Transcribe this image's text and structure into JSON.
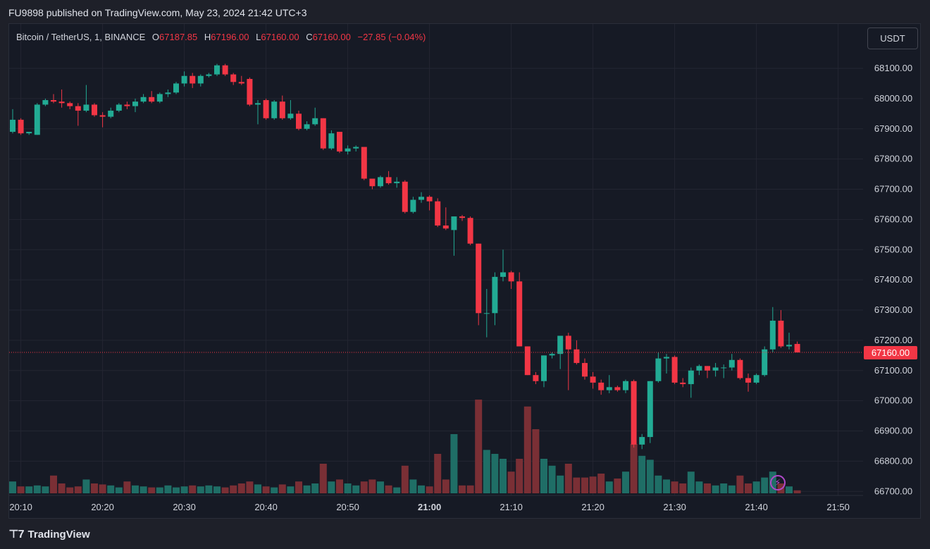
{
  "header": {
    "published_by": "FU9898 published on TradingView.com, May 23, 2024 21:42 UTC+3"
  },
  "legend": {
    "symbol": "Bitcoin / TetherUS, 1, BINANCE",
    "open_label": "O",
    "open": "67187.85",
    "high_label": "H",
    "high": "67196.00",
    "low_label": "L",
    "low": "67160.00",
    "close_label": "C",
    "close": "67160.00",
    "change": "−27.85 (−0.04%)"
  },
  "toolbar": {
    "currency": "USDT"
  },
  "footer": {
    "brand": "TradingView",
    "logo_icon": "tradingview-logo-icon"
  },
  "colors": {
    "up": "#22ab94",
    "down": "#f23645",
    "volume_up": "#1f6e66",
    "volume_down": "#7a2f35",
    "grid": "#232632",
    "last_price": "#f23645"
  },
  "chart_data": {
    "type": "candlestick",
    "x_start_time": "20:09",
    "interval_minutes": 1,
    "ylim": [
      66640,
      68170
    ],
    "last_price_label": "67160.00",
    "y_ticks": [
      {
        "value": 68100,
        "label": "68100.00"
      },
      {
        "value": 68000,
        "label": "68000.00"
      },
      {
        "value": 67900,
        "label": "67900.00"
      },
      {
        "value": 67800,
        "label": "67800.00"
      },
      {
        "value": 67700,
        "label": "67700.00"
      },
      {
        "value": 67600,
        "label": "67600.00"
      },
      {
        "value": 67500,
        "label": "67500.00"
      },
      {
        "value": 67400,
        "label": "67400.00"
      },
      {
        "value": 67300,
        "label": "67300.00"
      },
      {
        "value": 67200,
        "label": "67200.00"
      },
      {
        "value": 67100,
        "label": "67100.00"
      },
      {
        "value": 67000,
        "label": "67000.00"
      },
      {
        "value": 66900,
        "label": "66900.00"
      },
      {
        "value": 66800,
        "label": "66800.00"
      },
      {
        "value": 66700,
        "label": "66700.00"
      }
    ],
    "x_ticks": [
      {
        "index": 1,
        "label": "20:10",
        "bold": false
      },
      {
        "index": 11,
        "label": "20:20",
        "bold": false
      },
      {
        "index": 21,
        "label": "20:30",
        "bold": false
      },
      {
        "index": 31,
        "label": "20:40",
        "bold": false
      },
      {
        "index": 41,
        "label": "20:50",
        "bold": false
      },
      {
        "index": 51,
        "label": "21:00",
        "bold": true
      },
      {
        "index": 61,
        "label": "21:10",
        "bold": false
      },
      {
        "index": 71,
        "label": "21:20",
        "bold": false
      },
      {
        "index": 81,
        "label": "21:30",
        "bold": false
      },
      {
        "index": 91,
        "label": "21:40",
        "bold": false
      },
      {
        "index": 101,
        "label": "21:50",
        "bold": false
      }
    ],
    "candles": [
      {
        "o": 67890,
        "h": 67965,
        "l": 67885,
        "c": 67930,
        "v": 12
      },
      {
        "o": 67930,
        "h": 67935,
        "l": 67880,
        "c": 67885,
        "v": 7
      },
      {
        "o": 67885,
        "h": 67890,
        "l": 67880,
        "c": 67890,
        "v": 7
      },
      {
        "o": 67880,
        "h": 67985,
        "l": 67880,
        "c": 67980,
        "v": 8
      },
      {
        "o": 67980,
        "h": 68000,
        "l": 67975,
        "c": 67995,
        "v": 7
      },
      {
        "o": 67995,
        "h": 68015,
        "l": 67985,
        "c": 67990,
        "v": 18
      },
      {
        "o": 67990,
        "h": 68030,
        "l": 67970,
        "c": 67985,
        "v": 10
      },
      {
        "o": 67985,
        "h": 67990,
        "l": 67965,
        "c": 67975,
        "v": 6
      },
      {
        "o": 67975,
        "h": 67985,
        "l": 67910,
        "c": 67960,
        "v": 7
      },
      {
        "o": 67960,
        "h": 68045,
        "l": 67955,
        "c": 67980,
        "v": 14
      },
      {
        "o": 67980,
        "h": 67985,
        "l": 67940,
        "c": 67945,
        "v": 10
      },
      {
        "o": 67945,
        "h": 67955,
        "l": 67905,
        "c": 67940,
        "v": 9
      },
      {
        "o": 67940,
        "h": 67970,
        "l": 67935,
        "c": 67960,
        "v": 8
      },
      {
        "o": 67960,
        "h": 67985,
        "l": 67955,
        "c": 67980,
        "v": 6
      },
      {
        "o": 67980,
        "h": 67990,
        "l": 67965,
        "c": 67975,
        "v": 12
      },
      {
        "o": 67975,
        "h": 68000,
        "l": 67955,
        "c": 67990,
        "v": 8
      },
      {
        "o": 67990,
        "h": 68015,
        "l": 67985,
        "c": 68005,
        "v": 7
      },
      {
        "o": 68005,
        "h": 68025,
        "l": 67985,
        "c": 67990,
        "v": 6
      },
      {
        "o": 67990,
        "h": 68020,
        "l": 67985,
        "c": 68015,
        "v": 6
      },
      {
        "o": 68015,
        "h": 68030,
        "l": 68005,
        "c": 68020,
        "v": 8
      },
      {
        "o": 68020,
        "h": 68055,
        "l": 68015,
        "c": 68050,
        "v": 6
      },
      {
        "o": 68050,
        "h": 68090,
        "l": 68040,
        "c": 68075,
        "v": 7
      },
      {
        "o": 68075,
        "h": 68085,
        "l": 68035,
        "c": 68050,
        "v": 8
      },
      {
        "o": 68050,
        "h": 68080,
        "l": 68040,
        "c": 68075,
        "v": 7
      },
      {
        "o": 68075,
        "h": 68085,
        "l": 68070,
        "c": 68080,
        "v": 8
      },
      {
        "o": 68080,
        "h": 68115,
        "l": 68075,
        "c": 68110,
        "v": 7
      },
      {
        "o": 68110,
        "h": 68115,
        "l": 68075,
        "c": 68080,
        "v": 6
      },
      {
        "o": 68080,
        "h": 68085,
        "l": 68045,
        "c": 68055,
        "v": 8
      },
      {
        "o": 68055,
        "h": 68075,
        "l": 68045,
        "c": 68050,
        "v": 10
      },
      {
        "o": 68065,
        "h": 68070,
        "l": 67975,
        "c": 67980,
        "v": 12
      },
      {
        "o": 67980,
        "h": 67995,
        "l": 67915,
        "c": 67985,
        "v": 9
      },
      {
        "o": 67995,
        "h": 68000,
        "l": 67930,
        "c": 67935,
        "v": 7
      },
      {
        "o": 67935,
        "h": 67995,
        "l": 67930,
        "c": 67990,
        "v": 6
      },
      {
        "o": 67990,
        "h": 68010,
        "l": 67930,
        "c": 67935,
        "v": 9
      },
      {
        "o": 67935,
        "h": 67995,
        "l": 67930,
        "c": 67950,
        "v": 7
      },
      {
        "o": 67950,
        "h": 67960,
        "l": 67895,
        "c": 67900,
        "v": 12
      },
      {
        "o": 67900,
        "h": 67925,
        "l": 67895,
        "c": 67915,
        "v": 8
      },
      {
        "o": 67915,
        "h": 67970,
        "l": 67910,
        "c": 67935,
        "v": 10
      },
      {
        "o": 67935,
        "h": 67935,
        "l": 67830,
        "c": 67835,
        "v": 30
      },
      {
        "o": 67835,
        "h": 67895,
        "l": 67830,
        "c": 67885,
        "v": 12
      },
      {
        "o": 67890,
        "h": 67890,
        "l": 67820,
        "c": 67825,
        "v": 14
      },
      {
        "o": 67825,
        "h": 67845,
        "l": 67815,
        "c": 67835,
        "v": 10
      },
      {
        "o": 67835,
        "h": 67845,
        "l": 67825,
        "c": 67840,
        "v": 8
      },
      {
        "o": 67840,
        "h": 67840,
        "l": 67730,
        "c": 67735,
        "v": 12
      },
      {
        "o": 67735,
        "h": 67735,
        "l": 67700,
        "c": 67710,
        "v": 14
      },
      {
        "o": 67710,
        "h": 67745,
        "l": 67705,
        "c": 67740,
        "v": 12
      },
      {
        "o": 67740,
        "h": 67760,
        "l": 67715,
        "c": 67720,
        "v": 8
      },
      {
        "o": 67720,
        "h": 67740,
        "l": 67705,
        "c": 67725,
        "v": 6
      },
      {
        "o": 67725,
        "h": 67730,
        "l": 67620,
        "c": 67625,
        "v": 28
      },
      {
        "o": 67625,
        "h": 67675,
        "l": 67620,
        "c": 67665,
        "v": 14
      },
      {
        "o": 67665,
        "h": 67690,
        "l": 67655,
        "c": 67675,
        "v": 8
      },
      {
        "o": 67675,
        "h": 67680,
        "l": 67630,
        "c": 67660,
        "v": 7
      },
      {
        "o": 67660,
        "h": 67670,
        "l": 67575,
        "c": 67580,
        "v": 40
      },
      {
        "o": 67580,
        "h": 67640,
        "l": 67565,
        "c": 67570,
        "v": 14
      },
      {
        "o": 67565,
        "h": 67610,
        "l": 67480,
        "c": 67610,
        "v": 60
      },
      {
        "o": 67610,
        "h": 67615,
        "l": 67595,
        "c": 67605,
        "v": 8
      },
      {
        "o": 67605,
        "h": 67610,
        "l": 67515,
        "c": 67520,
        "v": 8
      },
      {
        "o": 67520,
        "h": 67520,
        "l": 67250,
        "c": 67290,
        "v": 95
      },
      {
        "o": 67290,
        "h": 67370,
        "l": 67210,
        "c": 67290,
        "v": 44
      },
      {
        "o": 67290,
        "h": 67425,
        "l": 67250,
        "c": 67410,
        "v": 40
      },
      {
        "o": 67410,
        "h": 67500,
        "l": 67395,
        "c": 67425,
        "v": 35
      },
      {
        "o": 67425,
        "h": 67430,
        "l": 67370,
        "c": 67395,
        "v": 22
      },
      {
        "o": 67395,
        "h": 67425,
        "l": 67180,
        "c": 67180,
        "v": 35
      },
      {
        "o": 67180,
        "h": 67180,
        "l": 67085,
        "c": 67085,
        "v": 88
      },
      {
        "o": 67085,
        "h": 67095,
        "l": 67055,
        "c": 67065,
        "v": 65
      },
      {
        "o": 67065,
        "h": 67150,
        "l": 67045,
        "c": 67150,
        "v": 35
      },
      {
        "o": 67150,
        "h": 67160,
        "l": 67140,
        "c": 67155,
        "v": 28
      },
      {
        "o": 67155,
        "h": 67210,
        "l": 67105,
        "c": 67215,
        "v": 18
      },
      {
        "o": 67215,
        "h": 67225,
        "l": 67035,
        "c": 67170,
        "v": 30
      },
      {
        "o": 67170,
        "h": 67200,
        "l": 67120,
        "c": 67125,
        "v": 16
      },
      {
        "o": 67125,
        "h": 67140,
        "l": 67070,
        "c": 67080,
        "v": 16
      },
      {
        "o": 67080,
        "h": 67095,
        "l": 67040,
        "c": 67060,
        "v": 17
      },
      {
        "o": 67060,
        "h": 67070,
        "l": 67020,
        "c": 67035,
        "v": 20
      },
      {
        "o": 67035,
        "h": 67085,
        "l": 67025,
        "c": 67045,
        "v": 12
      },
      {
        "o": 67045,
        "h": 67050,
        "l": 67030,
        "c": 67035,
        "v": 15
      },
      {
        "o": 67035,
        "h": 67070,
        "l": 67025,
        "c": 67065,
        "v": 22
      },
      {
        "o": 67065,
        "h": 67070,
        "l": 66845,
        "c": 66855,
        "v": 50
      },
      {
        "o": 66855,
        "h": 66890,
        "l": 66840,
        "c": 66880,
        "v": 38
      },
      {
        "o": 66880,
        "h": 67065,
        "l": 66860,
        "c": 67065,
        "v": 34
      },
      {
        "o": 67065,
        "h": 67160,
        "l": 67060,
        "c": 67140,
        "v": 18
      },
      {
        "o": 67140,
        "h": 67155,
        "l": 67090,
        "c": 67145,
        "v": 14
      },
      {
        "o": 67145,
        "h": 67150,
        "l": 67055,
        "c": 67060,
        "v": 12
      },
      {
        "o": 67060,
        "h": 67075,
        "l": 67045,
        "c": 67055,
        "v": 10
      },
      {
        "o": 67055,
        "h": 67110,
        "l": 67010,
        "c": 67100,
        "v": 22
      },
      {
        "o": 67100,
        "h": 67120,
        "l": 67085,
        "c": 67115,
        "v": 12
      },
      {
        "o": 67115,
        "h": 67115,
        "l": 67075,
        "c": 67100,
        "v": 10
      },
      {
        "o": 67100,
        "h": 67125,
        "l": 67080,
        "c": 67110,
        "v": 8
      },
      {
        "o": 67110,
        "h": 67120,
        "l": 67075,
        "c": 67110,
        "v": 10
      },
      {
        "o": 67110,
        "h": 67155,
        "l": 67100,
        "c": 67135,
        "v": 8
      },
      {
        "o": 67135,
        "h": 67140,
        "l": 67070,
        "c": 67075,
        "v": 18
      },
      {
        "o": 67075,
        "h": 67090,
        "l": 67030,
        "c": 67060,
        "v": 10
      },
      {
        "o": 67060,
        "h": 67090,
        "l": 67055,
        "c": 67085,
        "v": 12
      },
      {
        "o": 67085,
        "h": 67180,
        "l": 67080,
        "c": 67170,
        "v": 16
      },
      {
        "o": 67170,
        "h": 67310,
        "l": 67160,
        "c": 67265,
        "v": 22
      },
      {
        "o": 67265,
        "h": 67300,
        "l": 67175,
        "c": 67180,
        "v": 10
      },
      {
        "o": 67180,
        "h": 67225,
        "l": 67170,
        "c": 67185,
        "v": 7
      },
      {
        "o": 67188,
        "h": 67196,
        "l": 67160,
        "c": 67160,
        "v": 3
      }
    ]
  }
}
